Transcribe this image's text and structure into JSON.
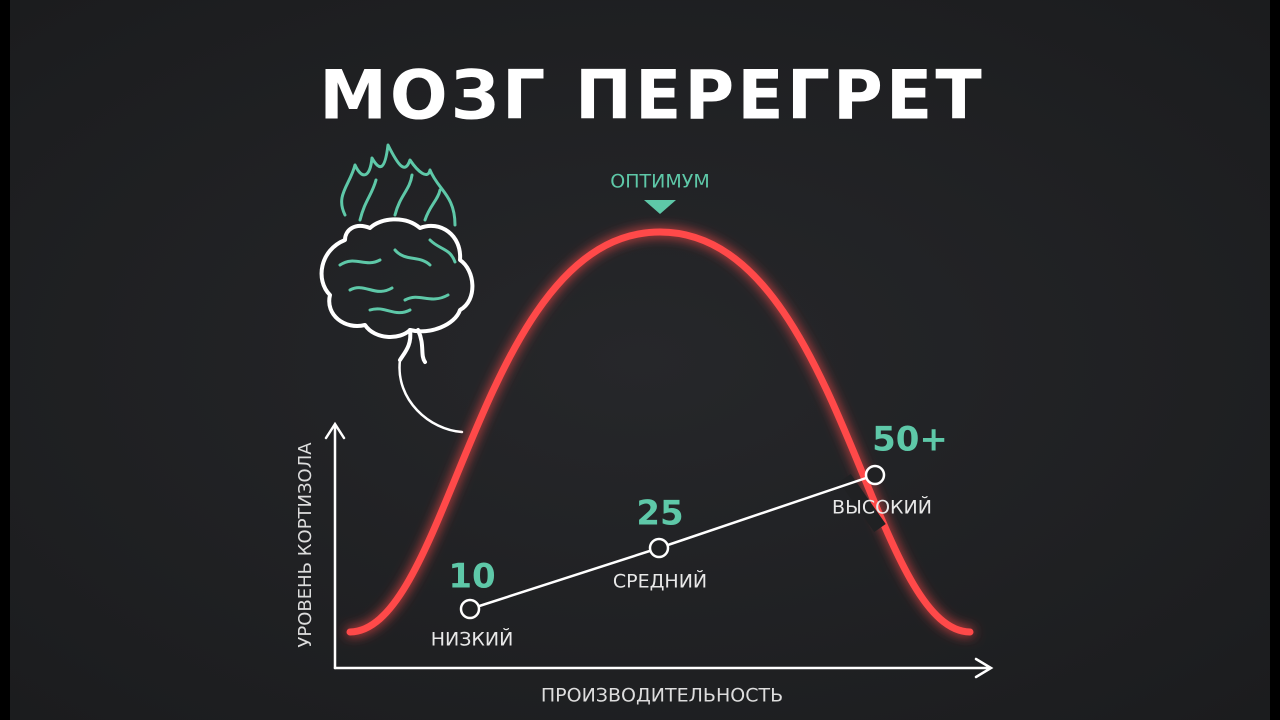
{
  "title": "МОЗГ ПЕРЕГРЕТ",
  "curve": {
    "peak_label": "ОПТИМУМ"
  },
  "points": [
    {
      "value": "10",
      "label": "НИЗКИЙ"
    },
    {
      "value": "25",
      "label": "СРЕДНИЙ"
    },
    {
      "value": "50+",
      "label": "ВЫСОКИЙ"
    }
  ],
  "axes": {
    "x": "ПРОИЗВОДИТЕЛЬНОСТЬ",
    "y": "УРОВЕНЬ КОРТИЗОЛА"
  }
}
